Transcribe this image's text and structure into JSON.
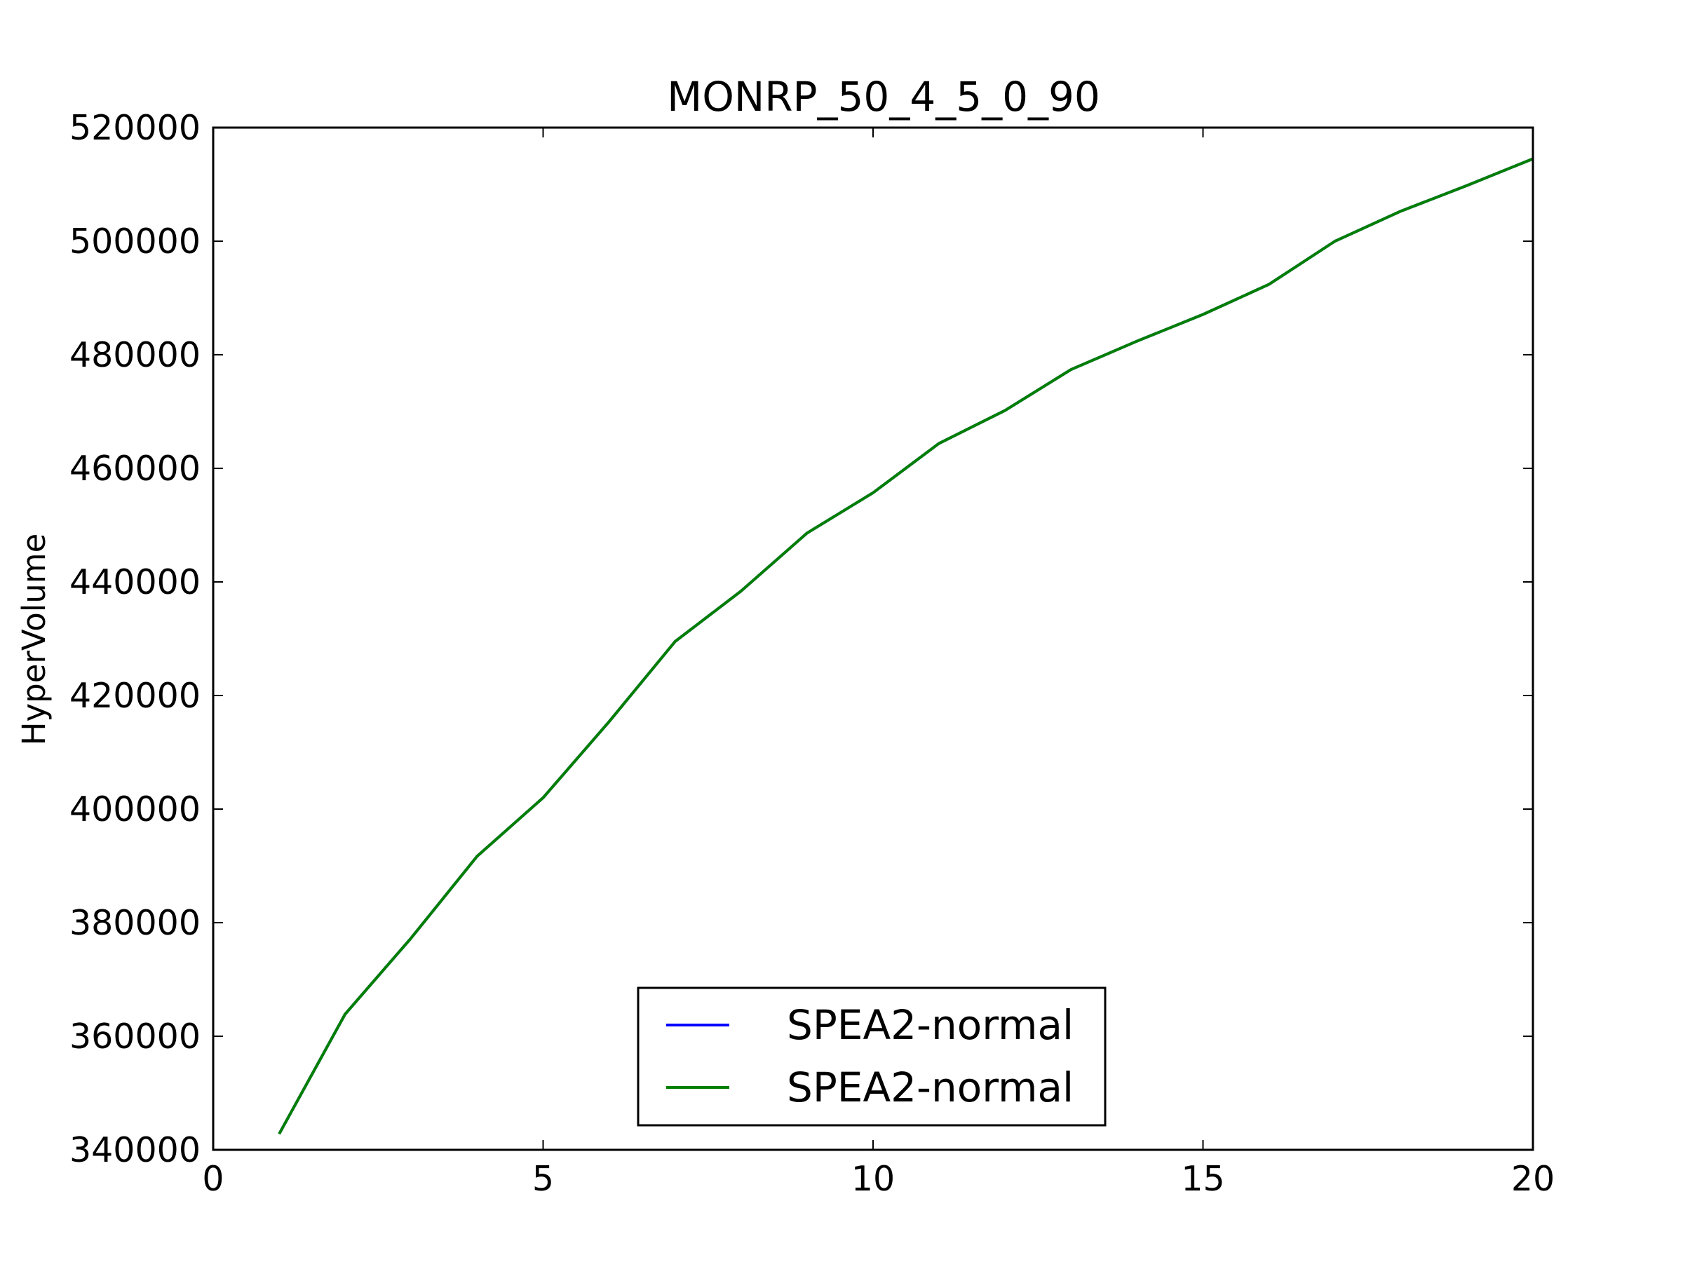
{
  "chart_data": {
    "type": "line",
    "title": "MONRP_50_4_5_0_90",
    "xlabel": "",
    "ylabel": "HyperVolume",
    "xlim": [
      0,
      20
    ],
    "ylim": [
      340000,
      520000
    ],
    "x_ticks": [
      0,
      5,
      10,
      15,
      20
    ],
    "y_ticks": [
      340000,
      360000,
      380000,
      400000,
      420000,
      440000,
      460000,
      480000,
      500000,
      520000
    ],
    "x_tick_labels": [
      "0",
      "5",
      "10",
      "15",
      "20"
    ],
    "y_tick_labels": [
      "340000",
      "360000",
      "380000",
      "400000",
      "420000",
      "440000",
      "460000",
      "480000",
      "500000",
      "520000"
    ],
    "grid": false,
    "legend_position": "lower center",
    "x": [
      1,
      2,
      3,
      4,
      5,
      6,
      7,
      8,
      9,
      10,
      11,
      12,
      13,
      14,
      15,
      16,
      17,
      18,
      19,
      20
    ],
    "series": [
      {
        "name": "SPEA2-normal",
        "color": "#0000ff",
        "values": [
          342800,
          363900,
          377300,
          391700,
          402000,
          415400,
          429500,
          438400,
          448600,
          455700,
          464400,
          470200,
          477400,
          482400,
          487100,
          492400,
          500000,
          505300,
          509800,
          514500
        ]
      },
      {
        "name": "SPEA2-normal",
        "color": "#007f00",
        "values": [
          342800,
          363900,
          377300,
          391700,
          402000,
          415400,
          429500,
          438400,
          448600,
          455700,
          464400,
          470200,
          477400,
          482400,
          487100,
          492400,
          500000,
          505300,
          509800,
          514500
        ]
      }
    ]
  }
}
